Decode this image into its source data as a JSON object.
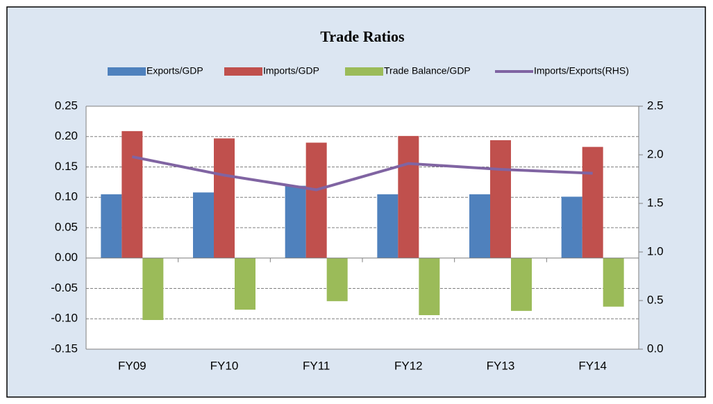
{
  "chart_data": {
    "type": "bar",
    "title": "Trade Ratios",
    "categories": [
      "FY09",
      "FY10",
      "FY11",
      "FY12",
      "FY13",
      "FY14"
    ],
    "series": [
      {
        "name": "Exports/GDP",
        "type": "bar",
        "color": "#4f81bd",
        "values": [
          0.105,
          0.108,
          0.119,
          0.105,
          0.105,
          0.101
        ]
      },
      {
        "name": "Imports/GDP",
        "type": "bar",
        "color": "#c0504d",
        "values": [
          0.209,
          0.197,
          0.19,
          0.201,
          0.194,
          0.183
        ]
      },
      {
        "name": "Trade Balance/GDP",
        "type": "bar",
        "color": "#9bbb59",
        "values": [
          -0.102,
          -0.085,
          -0.071,
          -0.094,
          -0.087,
          -0.08
        ]
      },
      {
        "name": "Imports/Exports(RHS)",
        "type": "line",
        "axis": "y2",
        "color": "#8064a2",
        "values": [
          1.98,
          1.79,
          1.64,
          1.91,
          1.85,
          1.81
        ]
      }
    ],
    "ylim": [
      -0.15,
      0.25
    ],
    "yticks": [
      {
        "value": 0.25,
        "label": "0.25"
      },
      {
        "value": 0.2,
        "label": "0.20"
      },
      {
        "value": 0.15,
        "label": "0.15"
      },
      {
        "value": 0.1,
        "label": "0.10"
      },
      {
        "value": 0.05,
        "label": "0.05"
      },
      {
        "value": 0,
        "label": "0.00"
      },
      {
        "value": -0.05,
        "label": "-0.05"
      },
      {
        "value": -0.1,
        "label": "-0.10"
      },
      {
        "value": -0.15,
        "label": "-0.15"
      }
    ],
    "y2lim": [
      0,
      2.5
    ],
    "y2ticks": [
      2.5,
      {
        "value": 2,
        "label": "2.0"
      },
      1.5,
      {
        "value": 1,
        "label": "1.0"
      },
      0.5,
      {
        "value": 0,
        "label": "0.0"
      }
    ],
    "grid": true,
    "legend": "top"
  }
}
